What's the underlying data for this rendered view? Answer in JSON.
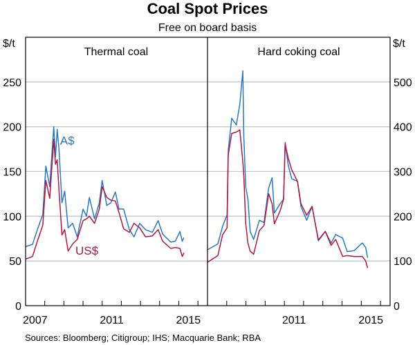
{
  "chart_data": {
    "type": "line",
    "title": "Coal Spot Prices",
    "subtitle": "Free on board basis",
    "source": "Sources:  Bloomberg; Citigroup; IHS; Macquarie Bank; RBA",
    "xlim": [
      2007,
      2016.5
    ],
    "x_tick_labels": [
      {
        "label": "2007",
        "value": 2007.5
      },
      {
        "label": "2011",
        "value": 2011.5
      },
      {
        "label": "2015",
        "value": 2015.5
      }
    ],
    "x_ticks": [
      2008,
      2009,
      2010,
      2011,
      2012,
      2013,
      2014,
      2015,
      2016
    ],
    "grid": true,
    "colors": {
      "A$": "#2878c4",
      "US$": "#b3163f"
    },
    "panels": [
      {
        "title": "Thermal coal",
        "yunit": "$/t",
        "axis": "left",
        "ylim": [
          0,
          300
        ],
        "yticks": [
          0,
          50,
          100,
          150,
          200,
          250
        ],
        "series_labels": [
          {
            "name": "A$",
            "x": 2008.8,
            "y": 180
          },
          {
            "name": "US$",
            "x": 2009.6,
            "y": 57
          }
        ],
        "series": [
          {
            "name": "A$",
            "x": [
              2007.0,
              2007.36,
              2007.6,
              2007.9,
              2008.06,
              2008.26,
              2008.47,
              2008.56,
              2008.65,
              2008.74,
              2008.9,
              2009.04,
              2009.22,
              2009.46,
              2009.7,
              2010.0,
              2010.18,
              2010.33,
              2010.6,
              2010.85,
              2011.0,
              2011.24,
              2011.45,
              2011.69,
              2011.88,
              2012.12,
              2012.42,
              2012.66,
              2012.96,
              2013.26,
              2013.62,
              2013.92,
              2014.16,
              2014.58,
              2014.82,
              2015.06,
              2015.18,
              2015.27
            ],
            "y": [
              66,
              68.5,
              84,
              102,
              156,
              133,
              200,
              166,
              197,
              176,
              115,
              128,
              87,
              92,
              77,
              108,
              100,
              121,
              97,
              115,
              140,
              112,
              115,
              127,
              108,
              108,
              85,
              77,
              92,
              85,
              82,
              95,
              80,
              71,
              72,
              83,
              72,
              76
            ]
          },
          {
            "name": "US$",
            "x": [
              2007.0,
              2007.36,
              2007.6,
              2007.9,
              2008.06,
              2008.26,
              2008.47,
              2008.56,
              2008.65,
              2008.74,
              2008.9,
              2009.04,
              2009.22,
              2009.46,
              2009.7,
              2010.0,
              2010.18,
              2010.33,
              2010.6,
              2010.85,
              2011.0,
              2011.24,
              2011.45,
              2011.69,
              2011.88,
              2012.12,
              2012.42,
              2012.66,
              2012.96,
              2013.26,
              2013.62,
              2013.92,
              2014.16,
              2014.58,
              2014.82,
              2015.06,
              2015.18,
              2015.27
            ],
            "y": [
              52,
              55,
              71,
              90,
              140,
              120,
              186,
              158,
              163,
              130,
              79,
              85,
              61,
              69,
              74,
              95,
              97,
              100,
              92,
              108,
              133,
              121,
              118,
              117,
              104,
              86,
              82,
              92,
              87,
              77,
              78,
              85,
              72,
              64,
              65,
              64,
              55,
              59
            ]
          }
        ]
      },
      {
        "title": "Hard coking coal",
        "yunit": "$/t",
        "axis": "right",
        "ylim": [
          0,
          600
        ],
        "yticks": [
          0,
          100,
          200,
          300,
          400,
          500
        ],
        "series": [
          {
            "name": "A$",
            "x": [
              2007.0,
              2007.54,
              2007.78,
              2008.02,
              2008.08,
              2008.26,
              2008.5,
              2008.68,
              2008.84,
              2008.89,
              2008.99,
              2009.1,
              2009.22,
              2009.4,
              2009.7,
              2009.94,
              2010.18,
              2010.36,
              2010.48,
              2010.78,
              2010.96,
              2011.04,
              2011.2,
              2011.38,
              2011.68,
              2011.86,
              2012.16,
              2012.44,
              2012.77,
              2013.13,
              2013.43,
              2013.67,
              2014.03,
              2014.27,
              2014.63,
              2015.05,
              2015.23,
              2015.33
            ],
            "y": [
              125,
              138,
              177,
              203,
              347,
              419,
              404,
              450,
              525,
              378,
              265,
              238,
              166,
              148,
              191,
              186,
              263,
              286,
              207,
              228,
              238,
              365,
              314,
              284,
              278,
              222,
              191,
              222,
              145,
              166,
              140,
              159,
              151,
              121,
              123,
              140,
              130,
              107
            ]
          },
          {
            "name": "US$",
            "x": [
              2007.0,
              2007.54,
              2007.78,
              2008.02,
              2008.08,
              2008.26,
              2008.5,
              2008.68,
              2008.84,
              2008.89,
              2008.99,
              2009.1,
              2009.22,
              2009.4,
              2009.7,
              2009.94,
              2010.18,
              2010.36,
              2010.48,
              2010.78,
              2010.96,
              2011.04,
              2011.2,
              2011.38,
              2011.68,
              2011.86,
              2012.16,
              2012.44,
              2012.77,
              2013.13,
              2013.43,
              2013.67,
              2014.03,
              2014.27,
              2014.63,
              2015.05,
              2015.23,
              2015.33
            ],
            "y": [
              97,
              112,
              158,
              174,
              337,
              385,
              388,
              393,
              322,
              290,
              183,
              140,
              122,
              115,
              168,
              179,
              250,
              228,
              183,
              212,
              238,
              361,
              330,
              304,
              278,
              228,
              202,
              222,
              147,
              166,
              135,
              148,
              110,
              112,
              110,
              110,
              100,
              84
            ]
          }
        ]
      }
    ]
  }
}
